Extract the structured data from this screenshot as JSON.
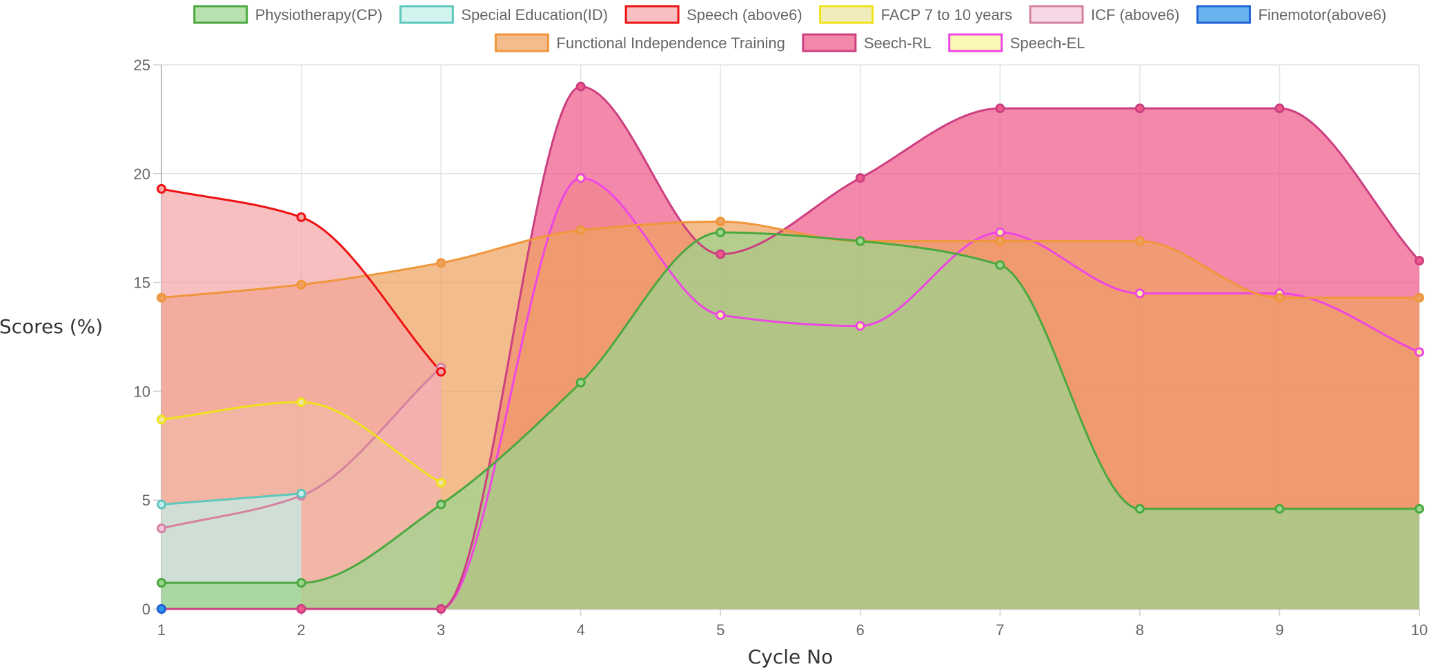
{
  "chart_data": {
    "type": "area",
    "title": "",
    "xlabel": "Cycle No",
    "ylabel": "Scores (%)",
    "x": [
      1,
      2,
      3,
      4,
      5,
      6,
      7,
      8,
      9,
      10
    ],
    "xlim": [
      1,
      10
    ],
    "ylim": [
      0,
      25
    ],
    "yticks": [
      0,
      5,
      10,
      15,
      20,
      25
    ],
    "grid": true,
    "legend_position": "top",
    "series": [
      {
        "name": "Physiotherapy(CP)",
        "line_color": "#4aa83f",
        "fill_color": "#9bd68f",
        "values": [
          1.2,
          1.2,
          4.8,
          10.4,
          17.3,
          16.9,
          15.8,
          4.6,
          4.6,
          4.6
        ]
      },
      {
        "name": "Special Education(ID)",
        "line_color": "#5ec7bc",
        "fill_color": "#c2efe9",
        "values": [
          4.8,
          5.3,
          null,
          null,
          null,
          null,
          null,
          null,
          null,
          null
        ]
      },
      {
        "name": "Speech (above6)",
        "line_color": "#ee1111",
        "fill_color": "#f4a6a6",
        "values": [
          19.3,
          18.0,
          10.9,
          null,
          null,
          null,
          null,
          null,
          null,
          null
        ]
      },
      {
        "name": "FACP 7 to 10 years",
        "line_color": "#f0e21a",
        "fill_color": "#ece6a0",
        "values": [
          8.7,
          9.5,
          5.8,
          null,
          null,
          null,
          null,
          null,
          null,
          null
        ]
      },
      {
        "name": "ICF (above6)",
        "line_color": "#d5819f",
        "fill_color": "#f3c8dd",
        "values": [
          3.7,
          5.2,
          11.1,
          null,
          null,
          null,
          null,
          null,
          null,
          null
        ]
      },
      {
        "name": "Finemotor(above6)",
        "line_color": "#1d63d8",
        "fill_color": "#2f97e8",
        "values": [
          0,
          null,
          null,
          null,
          null,
          null,
          null,
          null,
          null,
          null
        ]
      },
      {
        "name": "Functional Independence Training",
        "line_color": "#f0963a",
        "fill_color": "#eea260",
        "values": [
          14.3,
          14.9,
          15.9,
          17.4,
          17.8,
          16.9,
          16.9,
          16.9,
          14.3,
          14.3
        ]
      },
      {
        "name": "Seech-RL",
        "line_color": "#cc3f80",
        "fill_color": "#ee5a8a",
        "values": [
          0,
          0,
          0,
          24.0,
          16.3,
          19.8,
          23.0,
          23.0,
          23.0,
          16.0
        ]
      },
      {
        "name": "Speech-EL",
        "line_color": "#ee45e4",
        "fill_color": "#f6f59a",
        "values": [
          0,
          0,
          0,
          19.8,
          13.5,
          13.0,
          17.3,
          14.5,
          14.5,
          11.8
        ]
      }
    ]
  }
}
